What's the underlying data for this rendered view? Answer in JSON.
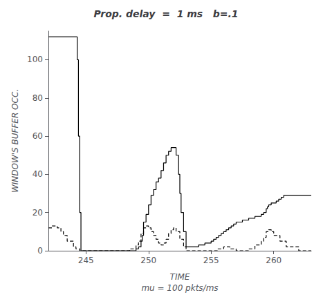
{
  "chart_data": {
    "type": "line",
    "title": "Prop. delay  =  1 ms   b=.1",
    "xlabel": "TIME\nmu = 100 pkts/ms",
    "ylabel": "WINDOW'S BUFFER OCC.",
    "xlim": [
      242,
      263
    ],
    "ylim": [
      0,
      115
    ],
    "xticks": [
      245,
      250,
      255,
      260
    ],
    "yticks": [
      0,
      20,
      40,
      60,
      80,
      100
    ],
    "grid": false,
    "series": [
      {
        "color": "#000000",
        "line_style": "solid",
        "x": [
          242,
          242.5,
          243.0,
          243.5,
          244.0,
          244.2,
          244.3,
          244.4,
          244.5,
          244.6,
          247.0,
          247.5,
          248.0,
          248.5,
          249.0,
          249.2,
          249.4,
          249.5,
          249.6,
          249.8,
          250.0,
          250.2,
          250.4,
          250.6,
          250.8,
          251.0,
          251.2,
          251.4,
          251.6,
          251.8,
          252.0,
          252.2,
          252.4,
          252.5,
          252.6,
          252.8,
          253.0,
          253.5,
          254.0,
          254.5,
          255.0,
          255.2,
          255.4,
          255.6,
          255.8,
          256.0,
          256.2,
          256.4,
          256.6,
          256.8,
          257.0,
          257.5,
          258.0,
          258.5,
          259.0,
          259.2,
          259.4,
          259.5,
          259.6,
          259.8,
          260.0,
          260.2,
          260.4,
          260.6,
          260.8,
          261.0,
          261.5,
          262.0,
          262.5,
          263.0
        ],
        "values": [
          112,
          112,
          112,
          112,
          112,
          112,
          100,
          60,
          20,
          0,
          0,
          0,
          0,
          0,
          1,
          2,
          5,
          8,
          15,
          19,
          24,
          29,
          32,
          36,
          38,
          42,
          46,
          50,
          52,
          54,
          54,
          50,
          40,
          30,
          20,
          10,
          2,
          2,
          3,
          4,
          5,
          6,
          7,
          8,
          9,
          10,
          11,
          12,
          13,
          14,
          15,
          16,
          17,
          18,
          19,
          20,
          22,
          23,
          24,
          25,
          25,
          26,
          27,
          28,
          29,
          29,
          29,
          29,
          29,
          29
        ]
      },
      {
        "color": "#000000",
        "line_style": "dashed",
        "x": [
          242,
          242.3,
          242.5,
          242.7,
          243.0,
          243.2,
          243.5,
          244.0,
          244.2,
          244.5,
          245.0,
          246.0,
          247.0,
          248.0,
          248.5,
          249.0,
          249.2,
          249.4,
          249.6,
          249.8,
          250.0,
          250.2,
          250.4,
          250.6,
          250.8,
          251.0,
          251.2,
          251.4,
          251.6,
          251.8,
          252.0,
          252.2,
          252.5,
          252.8,
          253.0,
          253.5,
          254.0,
          255.0,
          255.5,
          256.0,
          256.5,
          257.0,
          257.5,
          258.0,
          258.5,
          259.0,
          259.2,
          259.4,
          259.6,
          259.8,
          260.0,
          260.5,
          261.0,
          262.0,
          263.0
        ],
        "values": [
          12,
          13,
          13,
          12,
          10,
          8,
          5,
          2,
          1,
          0,
          0,
          0,
          0,
          0,
          1,
          3,
          5,
          9,
          12,
          13,
          12,
          10,
          8,
          6,
          4,
          3,
          4,
          6,
          9,
          11,
          12,
          10,
          6,
          2,
          0,
          0,
          0,
          0,
          1,
          2,
          1,
          0,
          0,
          1,
          3,
          5,
          7,
          10,
          11,
          10,
          8,
          5,
          2,
          0,
          0
        ]
      }
    ]
  }
}
